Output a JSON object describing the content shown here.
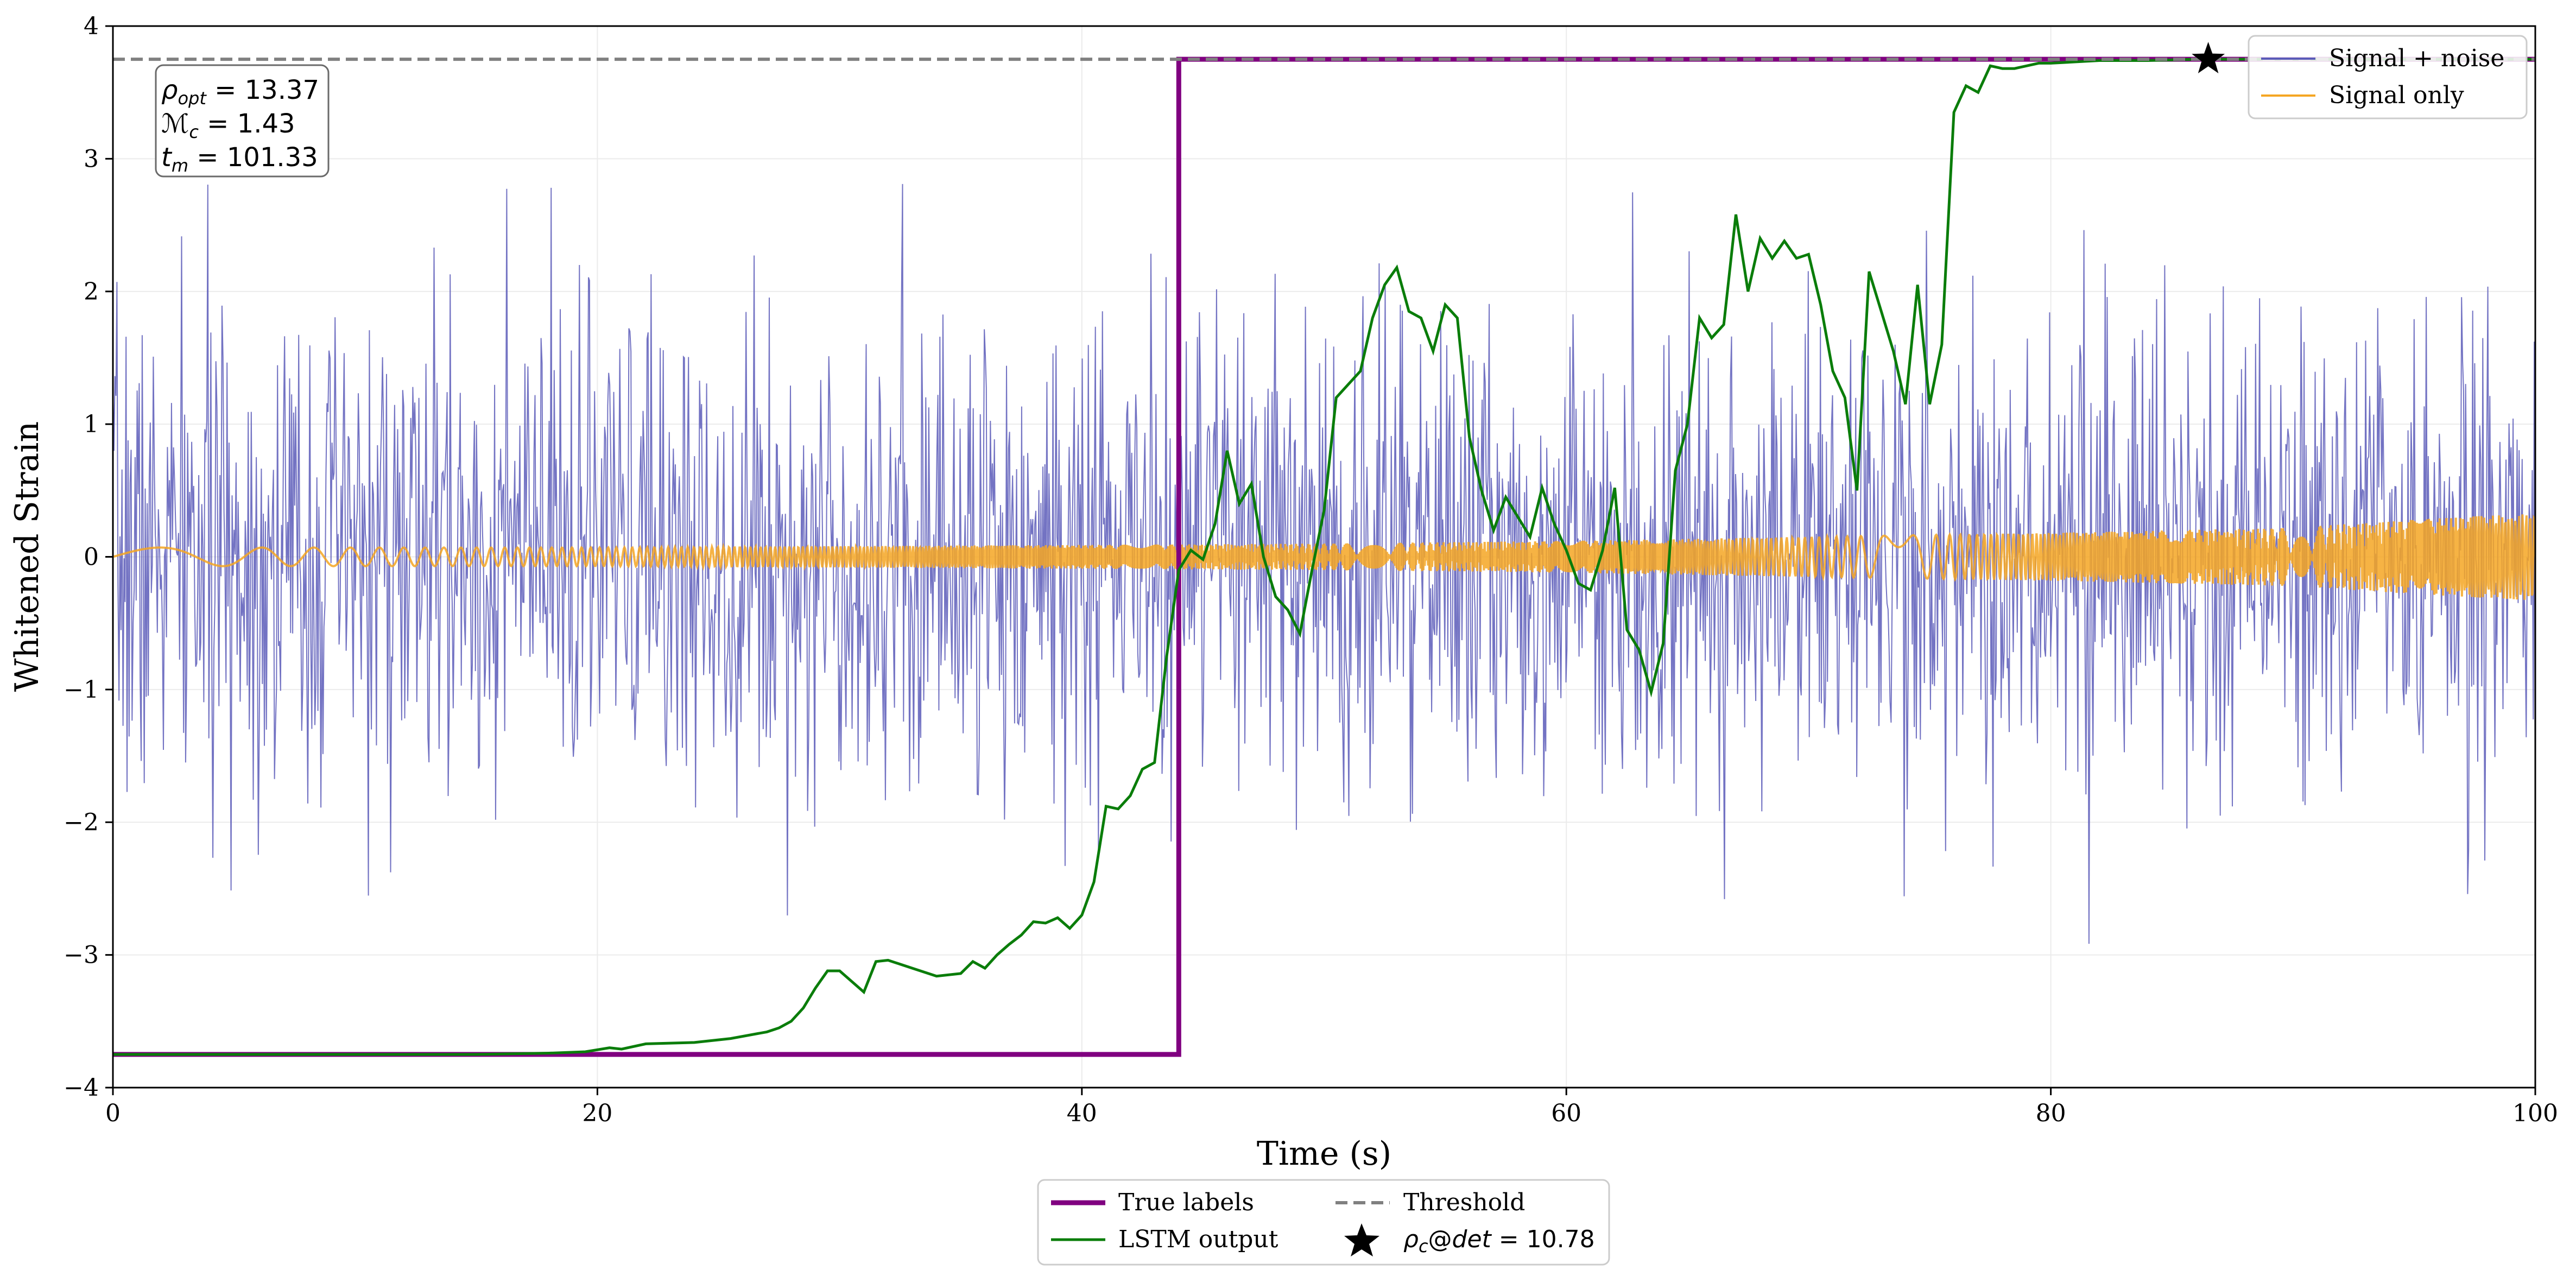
{
  "chart_data": {
    "type": "line",
    "xlabel": "Time (s)",
    "ylabel": "Whitened Strain",
    "xlim": [
      0,
      100
    ],
    "ylim": [
      -4,
      4
    ],
    "x_ticks": [
      0,
      20,
      40,
      60,
      80,
      100
    ],
    "x_tick_labels": [
      "0",
      "20",
      "40",
      "60",
      "80",
      "100"
    ],
    "y_ticks": [
      -4,
      -3,
      -2,
      -1,
      0,
      1,
      2,
      3,
      4
    ],
    "y_tick_labels": [
      "−4",
      "−3",
      "−2",
      "−1",
      "0",
      "1",
      "2",
      "3",
      "4"
    ],
    "grid": true,
    "threshold": {
      "name": "Threshold",
      "value": 3.75,
      "color": "#808080",
      "style": "dashed"
    },
    "series": [
      {
        "name": "Signal + noise",
        "color": "#5a5ab8",
        "kind": "noise",
        "x_range": [
          0,
          100
        ],
        "samples": 2400,
        "std": 0.9,
        "seed": 7
      },
      {
        "name": "Signal only",
        "color": "#f5a623",
        "kind": "chirp",
        "x_range": [
          0,
          100
        ],
        "envelope_x": [
          0,
          20,
          40,
          50,
          60,
          70,
          80,
          90,
          95,
          100
        ],
        "envelope_y": [
          0.07,
          0.07,
          0.09,
          0.1,
          0.12,
          0.15,
          0.18,
          0.22,
          0.28,
          0.33
        ]
      },
      {
        "name": "True labels",
        "color": "#800080",
        "kind": "step",
        "x": [
          0,
          44,
          44,
          100
        ],
        "y": [
          -3.75,
          -3.75,
          3.75,
          3.75
        ]
      },
      {
        "name": "LSTM output",
        "color": "#0a7d0a",
        "kind": "line",
        "x": [
          0,
          10,
          15,
          18,
          19.5,
          20.5,
          21,
          22,
          24,
          25.5,
          27,
          27.5,
          28,
          28.5,
          29,
          29.5,
          30,
          30.5,
          31,
          31.5,
          32,
          33,
          34,
          35,
          35.5,
          36,
          36.5,
          37,
          37.5,
          38,
          38.5,
          39,
          39.5,
          40,
          40.5,
          41,
          41.5,
          42,
          42.5,
          43,
          43.5,
          44,
          44.5,
          45,
          45.5,
          46,
          46.5,
          47,
          47.5,
          48,
          48.5,
          49,
          49.5,
          50,
          50.5,
          51,
          51.5,
          52,
          52.5,
          53,
          53.5,
          54,
          54.5,
          55,
          55.5,
          56,
          56.5,
          57,
          57.5,
          58,
          58.5,
          59,
          59.5,
          60,
          60.5,
          61,
          61.5,
          62,
          62.5,
          63,
          63.5,
          64,
          64.5,
          65,
          65.5,
          66,
          66.5,
          67,
          67.5,
          68,
          68.5,
          69,
          69.5,
          70,
          70.5,
          71,
          71.5,
          72,
          72.5,
          73,
          73.5,
          74,
          74.5,
          75,
          75.5,
          76,
          76.5,
          77,
          77.5,
          78,
          78.5,
          79,
          79.5,
          80,
          82,
          84,
          86,
          88,
          90,
          100
        ],
        "y": [
          -3.75,
          -3.75,
          -3.75,
          -3.74,
          -3.73,
          -3.7,
          -3.71,
          -3.67,
          -3.66,
          -3.63,
          -3.58,
          -3.55,
          -3.5,
          -3.4,
          -3.25,
          -3.12,
          -3.12,
          -3.2,
          -3.28,
          -3.05,
          -3.04,
          -3.1,
          -3.16,
          -3.14,
          -3.05,
          -3.1,
          -3.0,
          -2.92,
          -2.85,
          -2.75,
          -2.76,
          -2.72,
          -2.8,
          -2.7,
          -2.45,
          -1.88,
          -1.9,
          -1.8,
          -1.6,
          -1.55,
          -0.75,
          -0.1,
          0.05,
          -0.02,
          0.25,
          0.8,
          0.4,
          0.55,
          0.0,
          -0.3,
          -0.4,
          -0.58,
          -0.1,
          0.35,
          1.2,
          1.3,
          1.4,
          1.8,
          2.05,
          2.18,
          1.85,
          1.8,
          1.55,
          1.9,
          1.8,
          0.9,
          0.5,
          0.2,
          0.45,
          0.3,
          0.15,
          0.52,
          0.25,
          0.05,
          -0.2,
          -0.25,
          0.05,
          0.52,
          -0.55,
          -0.7,
          -1.02,
          -0.65,
          0.65,
          1.0,
          1.8,
          1.65,
          1.75,
          2.58,
          2.0,
          2.4,
          2.25,
          2.38,
          2.25,
          2.28,
          1.9,
          1.4,
          1.2,
          0.5,
          2.15,
          1.85,
          1.55,
          1.15,
          2.05,
          1.15,
          1.6,
          3.35,
          3.55,
          3.5,
          3.7,
          3.68,
          3.68,
          3.7,
          3.72,
          3.72,
          3.74,
          3.74,
          3.75,
          3.75,
          3.75,
          3.75
        ]
      }
    ],
    "detection_marker": {
      "x": 86.5,
      "y": 3.75,
      "color": "#000000",
      "label_parts": [
        "ρ",
        "c",
        "@",
        "det",
        " = 10.78"
      ]
    },
    "annotation": {
      "lines": [
        {
          "sym": "ρ",
          "sub": "opt",
          "val": " = 13.37"
        },
        {
          "sym": "ℳ",
          "sub": "c",
          "val": " = 1.43"
        },
        {
          "sym": "t",
          "sub": "m",
          "val": " = 101.33"
        }
      ]
    },
    "legend_top_right": [
      "Signal + noise",
      "Signal only"
    ],
    "legend_bottom": [
      "True labels",
      "Threshold",
      "LSTM output"
    ]
  }
}
